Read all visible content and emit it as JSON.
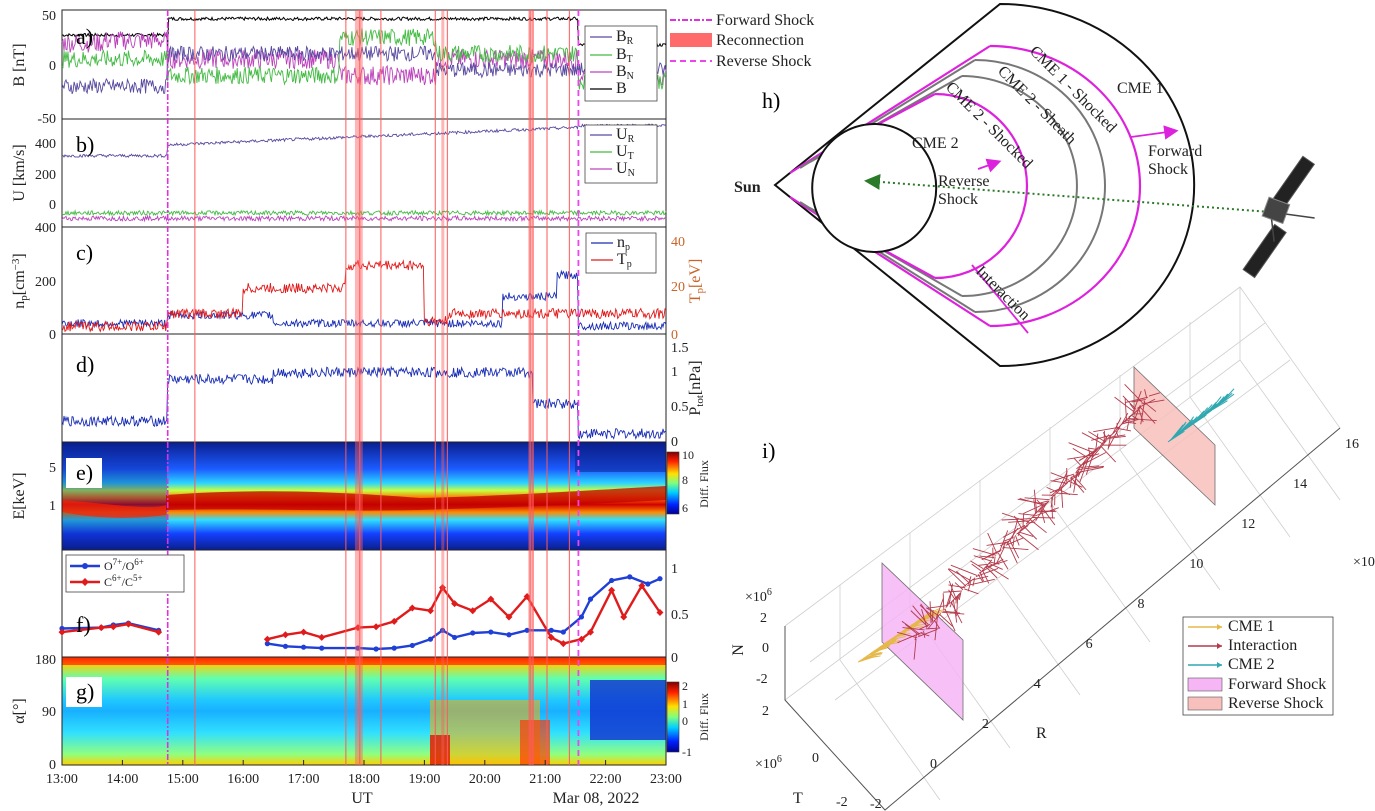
{
  "legend_top": {
    "forward": "Forward Shock",
    "reconnection": "Reconnection",
    "reverse": "Reverse Shock"
  },
  "colors": {
    "forward_shock": "#dd33dd",
    "reverse_shock": "#ee44ee",
    "reconnection": "#ff5a5a",
    "BR": "#5a4aa0",
    "BT": "#44bb44",
    "BN": "#bb44bb",
    "B": "#000000",
    "np": "#1b2fb5",
    "Tp": "#e01b1b",
    "ptot": "#1b2fb5",
    "O": "#1f3fd6",
    "C": "#e01b1b",
    "Tp_axis": "#c8652a",
    "cme1_arrow": "#e6b84a",
    "interaction_arrow": "#b43a4a",
    "cme2_arrow": "#2fa8b0"
  },
  "time_axis": {
    "ticks": [
      "13:00",
      "14:00",
      "15:00",
      "16:00",
      "17:00",
      "18:00",
      "19:00",
      "20:00",
      "21:00",
      "22:00",
      "23:00"
    ],
    "xlabel": "UT",
    "date": "Mar 08, 2022"
  },
  "events": {
    "forward_shock_time": 14.75,
    "reverse_shock_time": 21.55,
    "reconnection_lines": [
      15.2,
      17.7,
      17.93,
      18.28,
      19.18,
      19.38,
      20.75,
      20.8,
      21.03,
      21.4
    ],
    "reconnection_bands": [
      [
        17.85,
        17.98
      ],
      [
        19.28,
        19.33
      ],
      [
        20.72,
        20.8
      ]
    ]
  },
  "panels": {
    "a": {
      "label": "a)",
      "ylabel": "B [nT]",
      "yticks": [
        "50",
        "0",
        "-50"
      ],
      "legend": [
        {
          "main": "B",
          "sub": "R"
        },
        {
          "main": "B",
          "sub": "T"
        },
        {
          "main": "B",
          "sub": "N"
        },
        {
          "main": "B",
          "sub": ""
        }
      ]
    },
    "b": {
      "label": "b)",
      "ylabel": "U [km/s]",
      "yticks": [
        "400",
        "200",
        "0"
      ],
      "legend": [
        {
          "main": "U",
          "sub": "R"
        },
        {
          "main": "U",
          "sub": "T"
        },
        {
          "main": "U",
          "sub": "N"
        }
      ]
    },
    "c": {
      "label": "c)",
      "ylabel_main": "n",
      "ylabel_sub": "p",
      "ylabel_unit": "[cm",
      "ylabel_exp": "−3",
      "ylabel_end": "]",
      "yticks": [
        "400",
        "200",
        "0"
      ],
      "yticks_right": [
        "40",
        "20",
        "0"
      ],
      "ylabel_right_main": "T",
      "ylabel_right_sub": "p",
      "ylabel_right_unit": "[eV]",
      "legend": [
        {
          "main": "n",
          "sub": "p"
        },
        {
          "main": "T",
          "sub": "p"
        }
      ]
    },
    "d": {
      "label": "d)",
      "ylabel_right_main": "P",
      "ylabel_right_sub": "tot",
      "ylabel_right_unit": "[nPa]",
      "yticks_right": [
        "1.5",
        "1",
        "0.5",
        "0"
      ]
    },
    "e": {
      "label": "e)",
      "ylabel": "E[keV]",
      "yticks": [
        "5",
        "1"
      ],
      "colorbar_ticks": [
        "10",
        "8",
        "6"
      ],
      "colorbar_label": "Diff. Flux"
    },
    "f": {
      "label": "f)",
      "yticks_right": [
        "1",
        "0.5",
        "0"
      ],
      "legend": [
        {
          "a": "O",
          "ae": "7+",
          "b": "O",
          "be": "6+"
        },
        {
          "a": "C",
          "ae": "6+",
          "b": "C",
          "be": "5+"
        }
      ]
    },
    "g": {
      "label": "g)",
      "ylabel": "α[°]",
      "yticks": [
        "180",
        "90",
        "0"
      ],
      "colorbar_ticks": [
        "2",
        "1",
        "0",
        "-1"
      ],
      "colorbar_label": "Diff. Flux"
    }
  },
  "ratios": {
    "O": [
      [
        13.0,
        0.32
      ],
      [
        13.65,
        0.33
      ],
      [
        13.85,
        0.36
      ],
      [
        14.1,
        0.38
      ],
      [
        14.6,
        0.3
      ],
      [
        16.4,
        0.15
      ],
      [
        16.7,
        0.12
      ],
      [
        17.0,
        0.11
      ],
      [
        17.3,
        0.1
      ],
      [
        17.9,
        0.1
      ],
      [
        18.2,
        0.09
      ],
      [
        18.5,
        0.1
      ],
      [
        18.8,
        0.13
      ],
      [
        19.1,
        0.2
      ],
      [
        19.3,
        0.3
      ],
      [
        19.5,
        0.22
      ],
      [
        19.8,
        0.27
      ],
      [
        20.1,
        0.28
      ],
      [
        20.4,
        0.25
      ],
      [
        20.7,
        0.3
      ],
      [
        21.1,
        0.3
      ],
      [
        21.3,
        0.28
      ],
      [
        21.6,
        0.45
      ],
      [
        21.75,
        0.65
      ],
      [
        22.1,
        0.86
      ],
      [
        22.4,
        0.9
      ],
      [
        22.7,
        0.82
      ],
      [
        22.9,
        0.88
      ]
    ],
    "C": [
      [
        13.0,
        0.28
      ],
      [
        13.65,
        0.33
      ],
      [
        13.85,
        0.34
      ],
      [
        14.1,
        0.37
      ],
      [
        14.6,
        0.28
      ],
      [
        16.4,
        0.2
      ],
      [
        16.7,
        0.25
      ],
      [
        17.0,
        0.28
      ],
      [
        17.3,
        0.22
      ],
      [
        17.9,
        0.33
      ],
      [
        18.2,
        0.34
      ],
      [
        18.5,
        0.4
      ],
      [
        18.8,
        0.55
      ],
      [
        19.1,
        0.52
      ],
      [
        19.3,
        0.78
      ],
      [
        19.5,
        0.6
      ],
      [
        19.8,
        0.52
      ],
      [
        20.1,
        0.65
      ],
      [
        20.4,
        0.45
      ],
      [
        20.7,
        0.68
      ],
      [
        21.1,
        0.22
      ],
      [
        21.3,
        0.15
      ],
      [
        21.6,
        0.2
      ],
      [
        21.75,
        0.28
      ],
      [
        22.1,
        0.75
      ],
      [
        22.3,
        0.45
      ],
      [
        22.6,
        0.8
      ],
      [
        22.9,
        0.5
      ]
    ]
  },
  "schematic": {
    "label": "h)",
    "sun": "Sun",
    "cme1": "CME 1",
    "cme2": "CME 2",
    "cme1_shocked": "CME 1 - Shocked",
    "cme2_sheath": "CME 2 - Sheath",
    "cme2_shocked": "CME 2 - Shocked",
    "forward_line1": "Forward",
    "forward_line2": "Shock",
    "reverse_line1": "Reverse",
    "reverse_line2": "Shock",
    "interaction": "Interaction"
  },
  "plot3d": {
    "label": "i)",
    "xlabel": "R",
    "ylabel": "T",
    "zlabel": "N",
    "r_ticks": [
      "0",
      "2",
      "4",
      "6",
      "8",
      "10",
      "12",
      "14",
      "16"
    ],
    "t_ticks": [
      "2",
      "0",
      "-2"
    ],
    "n_ticks": [
      "2",
      "0",
      "-2"
    ],
    "extra_tick": "-2",
    "exp": "×10",
    "exp_power": "6",
    "legend": [
      "CME 1",
      "Interaction",
      "CME 2",
      "Forward Shock",
      "Reverse Shock"
    ]
  }
}
